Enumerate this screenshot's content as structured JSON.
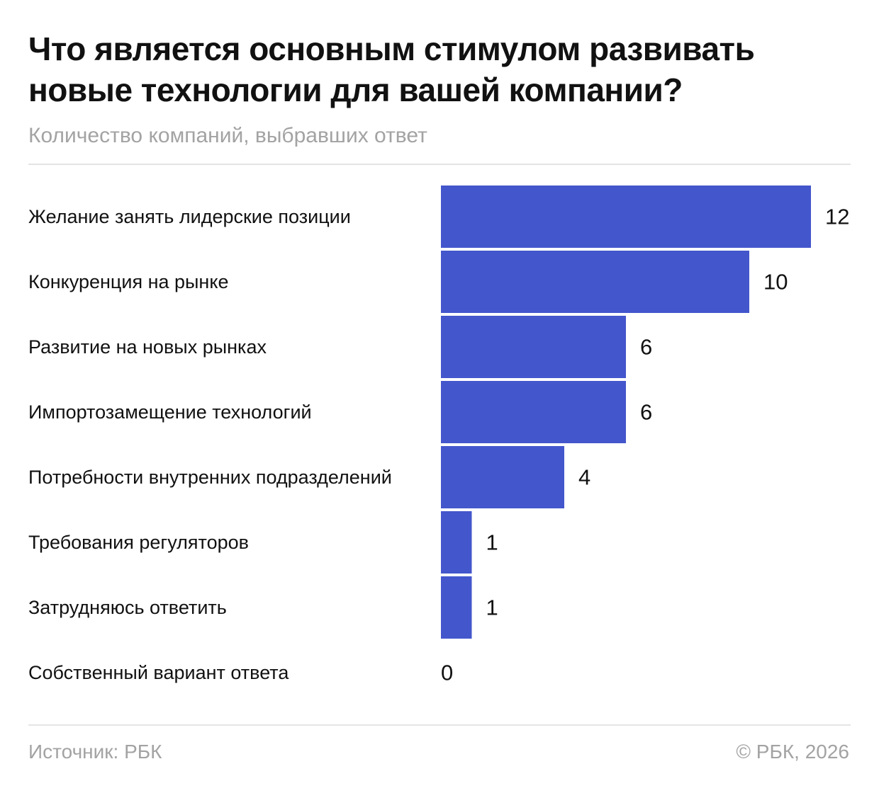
{
  "title": "Что является основным стимулом развивать новые технологии для вашей компании?",
  "subtitle": "Количество компаний, выбравших ответ",
  "footer": {
    "source": "Источник: РБК",
    "copyright": "© РБК, 2026"
  },
  "colors": {
    "bar": "#4356CC",
    "text": "#111111",
    "muted": "#A3A3A3",
    "rule": "#E4E4E4"
  },
  "chart_data": {
    "type": "bar",
    "orientation": "horizontal",
    "title": "Что является основным стимулом развивать новые технологии для вашей компании?",
    "subtitle": "Количество компаний, выбравших ответ",
    "categories": [
      "Желание занять лидерские позиции",
      "Конкуренция на рынке",
      "Развитие на новых рынках",
      "Импортозамещение технологий",
      "Потребности внутренних подразделений",
      "Требования регуляторов",
      "Затрудняюсь ответить",
      "Собственный вариант ответа"
    ],
    "values": [
      12,
      10,
      6,
      6,
      4,
      1,
      1,
      0
    ],
    "xlim": [
      0,
      12
    ],
    "grid": false,
    "legend": "none",
    "data_labels": true
  }
}
